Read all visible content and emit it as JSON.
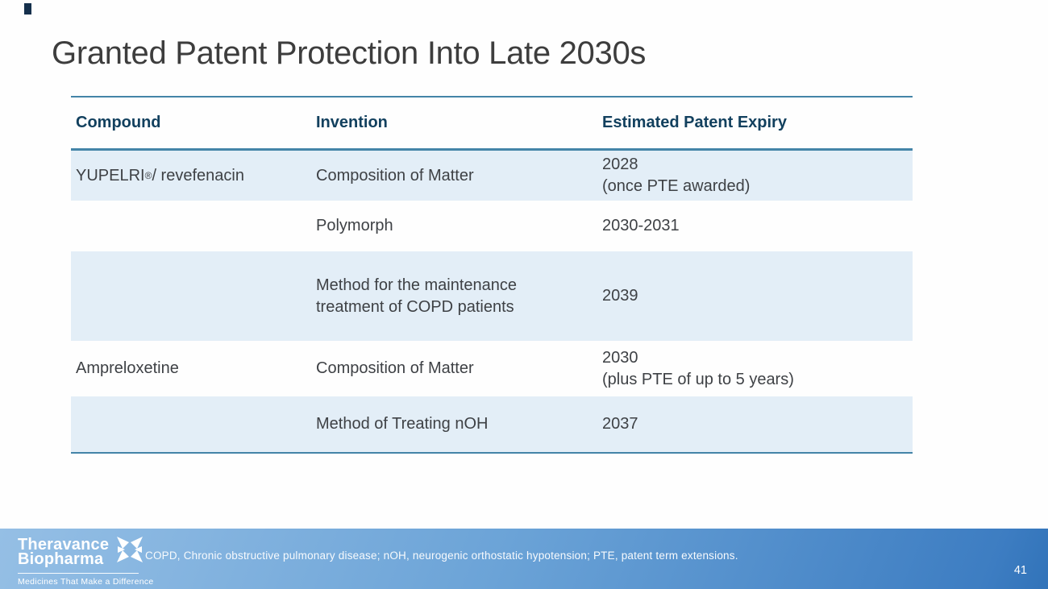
{
  "slide": {
    "title": "Granted Patent Protection Into Late 2030s",
    "page_number": "41"
  },
  "table": {
    "headers": [
      "Compound",
      "Invention",
      "Estimated Patent Expiry"
    ],
    "rows": [
      {
        "compound": "YUPELRI® / revefenacin",
        "invention": "Composition of Matter",
        "expiry": "2028\n(once PTE awarded)",
        "shaded": true
      },
      {
        "compound": "",
        "invention": "Polymorph",
        "expiry": "2030-2031",
        "shaded": false
      },
      {
        "compound": "",
        "invention": "Method for the maintenance\ntreatment of COPD patients",
        "expiry": "2039",
        "shaded": true
      },
      {
        "compound": "Ampreloxetine",
        "invention": "Composition of Matter",
        "expiry": "2030\n(plus PTE of up to 5 years)",
        "shaded": false
      },
      {
        "compound": "",
        "invention": "Method of Treating nOH",
        "expiry": "2037",
        "shaded": true
      }
    ]
  },
  "footer": {
    "logo": {
      "line1": "Theravance",
      "line2": "Biopharma",
      "tagline": "Medicines That Make a Difference",
      "mark_icon": "starburst-icon"
    },
    "footnote": "COPD, Chronic obstructive pulmonary disease;  nOH, neurogenic orthostatic hypotension; PTE, patent term extensions."
  },
  "colors": {
    "accent_line": "#4484a8",
    "header_text": "#12405e",
    "shaded_row": "#e3eef7",
    "body_text": "#3e4145",
    "title_text": "#3d3d3d",
    "footer_gradient_start": "#95bfe5",
    "footer_gradient_end": "#3173b9"
  }
}
